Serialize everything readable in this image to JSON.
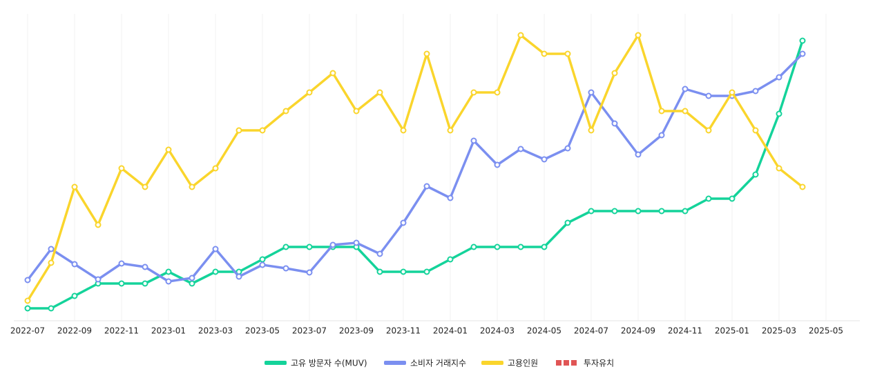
{
  "chart_data": {
    "type": "line",
    "categories": [
      "2022-07",
      null,
      "2022-09",
      null,
      "2022-11",
      null,
      "2023-01",
      null,
      "2023-03",
      null,
      "2023-05",
      null,
      "2023-07",
      null,
      "2023-09",
      null,
      "2023-11",
      null,
      "2024-01",
      null,
      "2024-03",
      null,
      "2024-05",
      null,
      "2024-07",
      null,
      "2024-09",
      null,
      "2024-11",
      null,
      "2025-01",
      null,
      "2025-03",
      null,
      "2025-05"
    ],
    "series": [
      {
        "name": "고유 방문자 수(MUV)",
        "color": "#14d39a",
        "values": [
          18,
          18,
          36,
          54,
          54,
          54,
          71,
          54,
          71,
          71,
          89,
          107,
          107,
          107,
          107,
          71,
          71,
          71,
          89,
          107,
          107,
          107,
          107,
          142,
          159,
          159,
          159,
          159,
          159,
          177,
          177,
          212,
          300,
          406,
          null
        ]
      },
      {
        "name": "소비자 거래지수",
        "color": "#7b8ff0",
        "values": [
          59,
          104,
          82,
          60,
          83,
          78,
          57,
          62,
          104,
          64,
          81,
          76,
          70,
          110,
          113,
          97,
          142,
          195,
          178,
          261,
          226,
          249,
          234,
          250,
          331,
          286,
          241,
          269,
          336,
          326,
          326,
          333,
          353,
          387,
          null
        ]
      },
      {
        "name": "고용인원",
        "color": "#fad52c",
        "values": [
          29,
          84,
          194,
          139,
          221,
          194,
          248,
          194,
          221,
          276,
          276,
          304,
          331,
          359,
          304,
          331,
          276,
          387,
          276,
          331,
          331,
          414,
          387,
          387,
          276,
          359,
          414,
          304,
          304,
          276,
          331,
          276,
          221,
          194,
          null
        ]
      },
      {
        "name": "투자유치",
        "color": "#e05555",
        "dashed": true,
        "values": [
          null,
          null,
          null,
          null,
          null,
          null,
          null,
          null,
          null,
          null,
          null,
          null,
          null,
          null,
          null,
          null,
          null,
          null,
          null,
          null,
          null,
          null,
          null,
          null,
          null,
          null,
          null,
          null,
          null,
          null,
          null,
          null,
          null,
          null,
          null
        ]
      }
    ],
    "ylim": [
      0,
      440
    ],
    "grid": true,
    "legend": "bottom"
  }
}
